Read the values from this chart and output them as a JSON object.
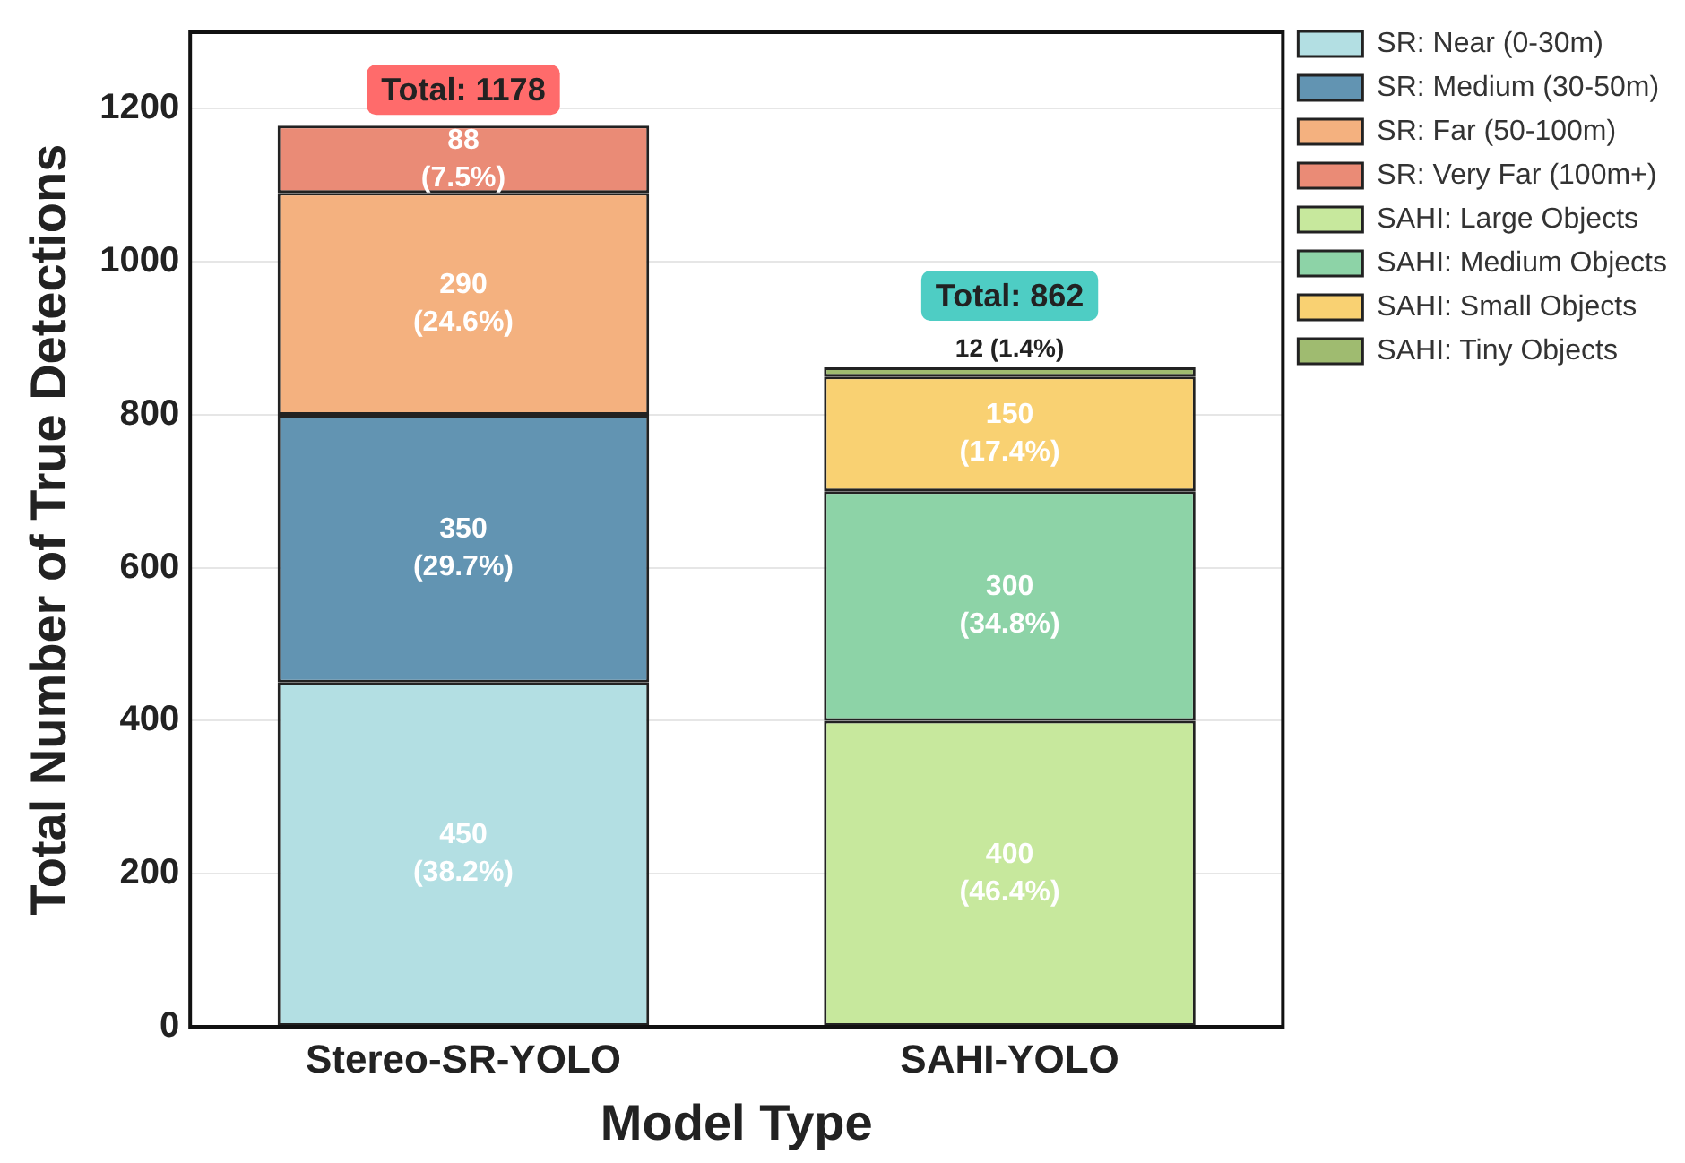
{
  "chart_data": {
    "type": "bar",
    "stacked": true,
    "xlabel": "Model Type",
    "ylabel": "Total Number of True Detections",
    "categories": [
      "Stereo-SR-YOLO",
      "SAHI-YOLO"
    ],
    "series": [
      {
        "name": "SR: Near (0-30m)",
        "color": "#b3dfe3",
        "values": [
          450,
          null
        ],
        "value_labels": [
          "450\n(38.2%)",
          null
        ]
      },
      {
        "name": "SR: Medium (30-50m)",
        "color": "#6294b2",
        "values": [
          350,
          null
        ],
        "value_labels": [
          "350\n(29.7%)",
          null
        ]
      },
      {
        "name": "SR: Far (50-100m)",
        "color": "#f4b17f",
        "values": [
          290,
          null
        ],
        "value_labels": [
          "290\n(24.6%)",
          null
        ]
      },
      {
        "name": "SR: Very Far (100m+)",
        "color": "#ea8b76",
        "values": [
          88,
          null
        ],
        "value_labels": [
          "88\n(7.5%)",
          null
        ]
      },
      {
        "name": "SAHI: Large Objects",
        "color": "#c7e89d",
        "values": [
          null,
          400
        ],
        "value_labels": [
          null,
          "400\n(46.4%)"
        ]
      },
      {
        "name": "SAHI: Medium Objects",
        "color": "#8dd3a7",
        "values": [
          null,
          300
        ],
        "value_labels": [
          null,
          "300\n(34.8%)"
        ]
      },
      {
        "name": "SAHI: Small Objects",
        "color": "#f9d172",
        "values": [
          null,
          150
        ],
        "value_labels": [
          null,
          "150\n(17.4%)"
        ]
      },
      {
        "name": "SAHI: Tiny Objects",
        "color": "#9fbb70",
        "values": [
          null,
          12
        ],
        "value_labels": [
          null,
          "12 (1.4%)"
        ]
      }
    ],
    "totals": [
      "Total: 1178",
      "Total: 862"
    ],
    "ylim": [
      0,
      1300
    ],
    "yticks": [
      0,
      200,
      400,
      600,
      800,
      1000,
      1200
    ],
    "grid": "y",
    "legend": "top right"
  }
}
